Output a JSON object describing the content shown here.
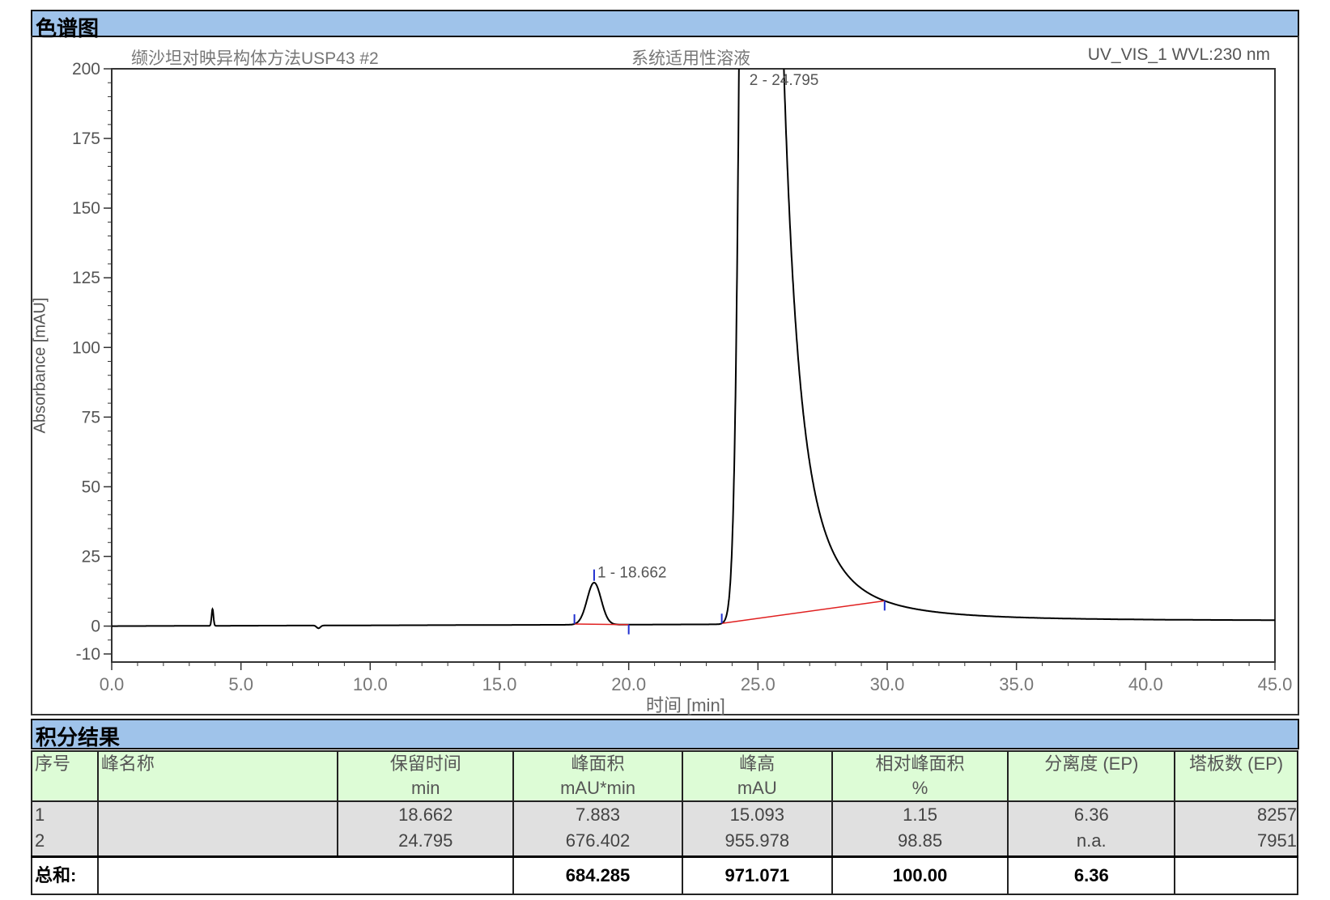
{
  "chromatogram_section": {
    "title": "色谱图"
  },
  "chart_data": {
    "type": "line",
    "header_left": "缬沙坦对映异构体方法USP43 #2",
    "header_center": "系统适用性溶液",
    "header_right": "UV_VIS_1 WVL:230 nm",
    "xlabel": "时间 [min]",
    "ylabel": "Absorbance [mAU]",
    "xlim": [
      0,
      45
    ],
    "ylim": [
      -10,
      200
    ],
    "xticks": [
      "0.0",
      "5.0",
      "10.0",
      "15.0",
      "20.0",
      "25.0",
      "30.0",
      "35.0",
      "40.0",
      "45.0"
    ],
    "yticks": [
      "-10",
      "0",
      "25",
      "50",
      "75",
      "100",
      "125",
      "150",
      "175",
      "200"
    ],
    "grid": false,
    "line_color": "#000000",
    "baseline_color": "#e02020",
    "marker_color": "#2030d0",
    "peaks": [
      {
        "label": "1 - 18.662",
        "rt": 18.662,
        "height": 15.093,
        "start": 17.9,
        "end": 20.0
      },
      {
        "label": "2 - 24.795",
        "rt": 24.795,
        "height": 955.978,
        "start": 23.6,
        "end": 29.9
      }
    ]
  },
  "results_section": {
    "title": "积分结果"
  },
  "table": {
    "headers": [
      [
        "序号",
        ""
      ],
      [
        "峰名称",
        ""
      ],
      [
        "保留时间",
        "min"
      ],
      [
        "峰面积",
        "mAU*min"
      ],
      [
        "峰高",
        "mAU"
      ],
      [
        "相对峰面积",
        "%"
      ],
      [
        "分离度 (EP)",
        ""
      ],
      [
        "塔板数 (EP)",
        ""
      ]
    ],
    "rows": [
      [
        "1",
        "",
        "18.662",
        "7.883",
        "15.093",
        "1.15",
        "6.36",
        "8257"
      ],
      [
        "2",
        "",
        "24.795",
        "676.402",
        "955.978",
        "98.85",
        "n.a.",
        "7951"
      ]
    ],
    "total": [
      "总和:",
      "",
      "",
      "684.285",
      "971.071",
      "100.00",
      "6.36",
      ""
    ]
  }
}
